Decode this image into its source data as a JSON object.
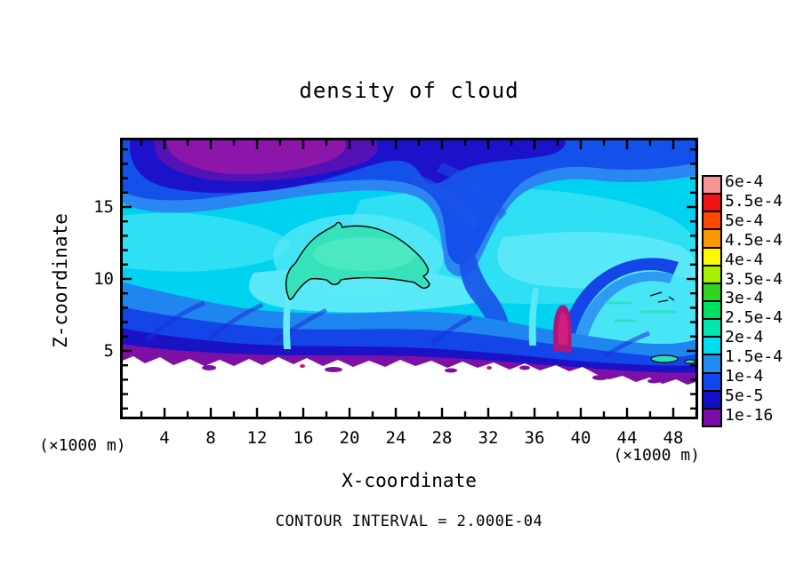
{
  "title": "density of cloud",
  "plot": {
    "x_axis": {
      "label": "X-coordinate",
      "unit": "(×1000 m)",
      "ticks": [
        "4",
        "8",
        "12",
        "16",
        "20",
        "24",
        "28",
        "32",
        "36",
        "40",
        "44",
        "48"
      ]
    },
    "y_axis": {
      "label": "Z-coordinate",
      "unit": "(×1000 m)",
      "ticks": [
        "15",
        "10",
        "5"
      ]
    },
    "footnote": "CONTOUR INTERVAL = 2.000E-04"
  },
  "colorbar": {
    "labels_top_to_bottom": [
      "6e-4",
      "5.5e-4",
      "5e-4",
      "4.5e-4",
      "4e-4",
      "3.5e-4",
      "3e-4",
      "2.5e-4",
      "2e-4",
      "1.5e-4",
      "1e-4",
      "5e-5",
      "1e-16"
    ],
    "colors_top_to_bottom": [
      "#f89494",
      "#f21414",
      "#fc4800",
      "#fc9800",
      "#fafa00",
      "#a8f000",
      "#2ed41e",
      "#00e060",
      "#00e8b0",
      "#00dcf0",
      "#1e8cf0",
      "#1048f0",
      "#1410c8",
      "#7a0ca8"
    ]
  },
  "chart_data": {
    "type": "heatmap",
    "title": "density of cloud",
    "xlabel": "X-coordinate",
    "ylabel": "Z-coordinate",
    "x_units": "×1000 m",
    "y_units": "×1000 m",
    "xlim": [
      0,
      50
    ],
    "ylim": [
      0,
      20
    ],
    "x_major_ticks": [
      4,
      8,
      12,
      16,
      20,
      24,
      28,
      32,
      36,
      40,
      44,
      48
    ],
    "x_minor_tick_step": 2,
    "y_major_ticks": [
      5,
      10,
      15
    ],
    "y_minor_tick_step": 1,
    "grid": false,
    "legend_position": "colorbar-right",
    "contour_interval": 0.0002,
    "colorbar_levels": [
      "1e-16",
      "5e-5",
      "1e-4",
      "1.5e-4",
      "2e-4",
      "2.5e-4",
      "3e-4",
      "3.5e-4",
      "4e-4",
      "4.5e-4",
      "5e-4",
      "5.5e-4",
      "6e-4"
    ],
    "colorbar_colors_bottom_to_top": [
      "#7a0ca8",
      "#1410c8",
      "#1048f0",
      "#1e8cf0",
      "#00dcf0",
      "#00e8b0",
      "#00e060",
      "#2ed41e",
      "#a8f000",
      "#fafa00",
      "#fc9800",
      "#fc4800",
      "#f21414",
      "#f89494"
    ],
    "features": [
      "near-zero density blob (purple ~1e-16) hugging top edge at x≈2-11, z≈18-20, ringed by indigo and navy",
      "low-density dark-blue band along entire top edge, thinning toward the right",
      "bulk of domain cyan, density ≈1e-4 to 2e-4",
      "single closed 2e-4 black contour line enclosing a teal maximum (≈2-2.5e-4), dolphin-shaped, centered near x≈15-27, z≈9.5-13.5",
      "diagonal dark-blue streaks descending from top band near x≈26-35 toward z≈8",
      "thin bright-cyan vertical plumes rising from cloud base near x≈14.5 and x≈35.5",
      "magenta/near-zero narrow streak near x≈38, z≈5-8",
      "cyan dome structure near x≈40-50, z≈4-10 outlined by a darker blue arc, with tiny black contour fragments near x≈46-48, z≈10",
      "small black-outlined teal spot at x≈47-49, z≈4",
      "ragged cloud base at z≈4-5: blue -> navy -> purple strip with scattered purple islands, white (zero) below"
    ]
  }
}
